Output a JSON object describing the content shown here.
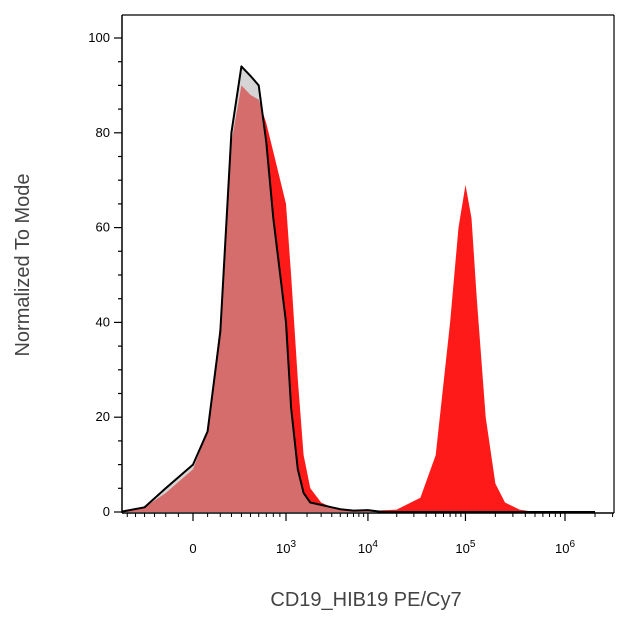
{
  "chart_data": {
    "type": "area",
    "xlabel": "CD19_HIB19 PE/Cy7",
    "ylabel": "Normalized To Mode",
    "x_scale": "biexponential",
    "ylim": [
      0,
      105
    ],
    "y_ticks": [
      {
        "value": 0,
        "label": "0"
      },
      {
        "value": 20,
        "label": "20"
      },
      {
        "value": 40,
        "label": "40"
      },
      {
        "value": 60,
        "label": "60"
      },
      {
        "value": 80,
        "label": "80"
      },
      {
        "value": 100,
        "label": "100"
      }
    ],
    "x_ticks": [
      {
        "value": 0,
        "base": "0",
        "exp": ""
      },
      {
        "value": 1000,
        "base": "10",
        "exp": "3"
      },
      {
        "value": 10000,
        "base": "10",
        "exp": "4"
      },
      {
        "value": 100000,
        "base": "10",
        "exp": "5"
      },
      {
        "value": 1000000,
        "base": "10",
        "exp": "6"
      }
    ],
    "series": [
      {
        "style": "filled",
        "color": "#ff1a1a",
        "points": [
          [
            -700,
            0
          ],
          [
            -400,
            1
          ],
          [
            -200,
            4
          ],
          [
            0,
            9
          ],
          [
            100,
            17
          ],
          [
            200,
            40
          ],
          [
            300,
            78
          ],
          [
            400,
            90
          ],
          [
            500,
            88
          ],
          [
            600,
            87
          ],
          [
            700,
            82
          ],
          [
            800,
            76
          ],
          [
            1000,
            65
          ],
          [
            1200,
            50
          ],
          [
            1500,
            28
          ],
          [
            1800,
            12
          ],
          [
            2200,
            5
          ],
          [
            3000,
            2
          ],
          [
            4000,
            1
          ],
          [
            6000,
            0.3
          ],
          [
            10000,
            0.2
          ],
          [
            20000,
            0.5
          ],
          [
            35000,
            3
          ],
          [
            50000,
            12
          ],
          [
            70000,
            40
          ],
          [
            85000,
            60
          ],
          [
            100000,
            69
          ],
          [
            115000,
            62
          ],
          [
            130000,
            45
          ],
          [
            160000,
            20
          ],
          [
            200000,
            6
          ],
          [
            250000,
            2
          ],
          [
            350000,
            0.5
          ],
          [
            500000,
            0
          ],
          [
            2000000,
            0
          ]
        ]
      },
      {
        "style": "outline",
        "color": "#000000",
        "fill": "#b3b3b3",
        "points": [
          [
            -700,
            0
          ],
          [
            -400,
            1
          ],
          [
            -200,
            5
          ],
          [
            0,
            10
          ],
          [
            100,
            17
          ],
          [
            200,
            38
          ],
          [
            300,
            80
          ],
          [
            400,
            94
          ],
          [
            500,
            92
          ],
          [
            600,
            90
          ],
          [
            700,
            78
          ],
          [
            800,
            62
          ],
          [
            1000,
            40
          ],
          [
            1200,
            22
          ],
          [
            1500,
            9
          ],
          [
            1800,
            4
          ],
          [
            2200,
            2
          ],
          [
            3000,
            1.5
          ],
          [
            4000,
            1
          ],
          [
            5000,
            0.6
          ],
          [
            7000,
            0.3
          ],
          [
            10000,
            0.4
          ],
          [
            13000,
            0.1
          ],
          [
            16000,
            0
          ],
          [
            2000000,
            0
          ]
        ]
      }
    ]
  }
}
